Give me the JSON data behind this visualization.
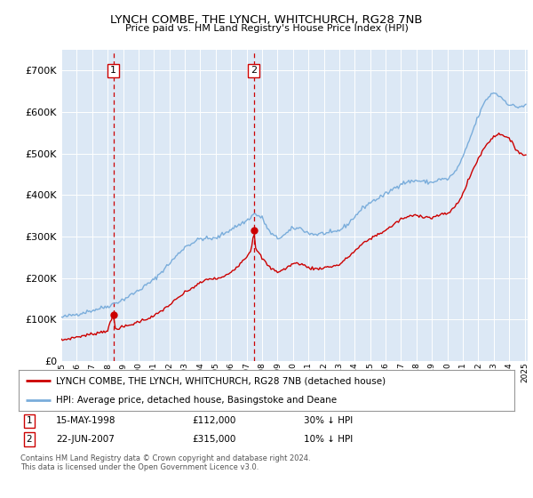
{
  "title": "LYNCH COMBE, THE LYNCH, WHITCHURCH, RG28 7NB",
  "subtitle": "Price paid vs. HM Land Registry's House Price Index (HPI)",
  "legend_line1": "LYNCH COMBE, THE LYNCH, WHITCHURCH, RG28 7NB (detached house)",
  "legend_line2": "HPI: Average price, detached house, Basingstoke and Deane",
  "footnote": "Contains HM Land Registry data © Crown copyright and database right 2024.\nThis data is licensed under the Open Government Licence v3.0.",
  "marker1_date": "15-MAY-1998",
  "marker1_price": "£112,000",
  "marker1_hpi": "30% ↓ HPI",
  "marker1_year": 1998.37,
  "marker1_value": 112000,
  "marker2_date": "22-JUN-2007",
  "marker2_price": "£315,000",
  "marker2_hpi": "10% ↓ HPI",
  "marker2_year": 2007.47,
  "marker2_value": 315000,
  "red_color": "#cc0000",
  "blue_color": "#7aaddb",
  "background_color": "#dce8f5",
  "plot_bg": "#ffffff",
  "ylim": [
    0,
    750000
  ],
  "yticks": [
    0,
    100000,
    200000,
    300000,
    400000,
    500000,
    600000,
    700000
  ],
  "xlim_start": 1995.0,
  "xlim_end": 2025.2
}
